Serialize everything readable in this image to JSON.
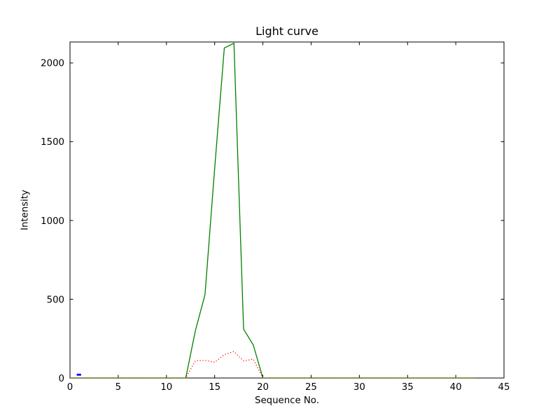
{
  "chart_data": {
    "type": "line",
    "title": "Light curve",
    "xlabel": "Sequence No.",
    "ylabel": "Intensity",
    "xlim": [
      0,
      45
    ],
    "ylim": [
      0,
      2133
    ],
    "xticks": [
      0,
      5,
      10,
      15,
      20,
      25,
      30,
      35,
      40,
      45
    ],
    "yticks": [
      0,
      500,
      1000,
      1500,
      2000
    ],
    "grid": false,
    "legend": "none",
    "x": [
      0,
      1,
      2,
      3,
      4,
      5,
      6,
      7,
      8,
      9,
      10,
      11,
      12,
      13,
      14,
      15,
      16,
      17,
      18,
      19,
      20,
      21,
      22,
      23,
      24,
      25,
      26,
      27,
      28,
      29,
      30,
      31,
      32,
      33,
      34,
      35,
      36,
      37,
      38,
      39,
      40,
      41,
      42
    ],
    "series": [
      {
        "name": "green-solid",
        "color": "#008000",
        "line_style": "solid",
        "values": [
          0,
          0,
          0,
          0,
          0,
          0,
          0,
          0,
          0,
          0,
          0,
          0,
          0,
          300,
          530,
          1330,
          2095,
          2125,
          310,
          210,
          0,
          0,
          0,
          0,
          0,
          0,
          0,
          0,
          0,
          0,
          0,
          0,
          0,
          0,
          0,
          0,
          0,
          0,
          0,
          0,
          0,
          0,
          0
        ]
      },
      {
        "name": "red-dotted",
        "color": "#ff0000",
        "line_style": "dotted",
        "values": [
          0,
          0,
          0,
          0,
          0,
          0,
          0,
          0,
          0,
          0,
          0,
          0,
          0,
          110,
          112,
          100,
          148,
          168,
          108,
          120,
          0,
          0,
          0,
          0,
          0,
          0,
          0,
          0,
          0,
          0,
          0,
          0,
          0,
          0,
          0,
          0,
          0,
          0,
          0,
          0,
          0,
          0,
          0
        ]
      }
    ],
    "extra_marks": [
      {
        "name": "blue-dash",
        "color": "#0000ff",
        "points": [
          [
            0.7,
            21
          ],
          [
            1.15,
            21
          ]
        ]
      }
    ]
  },
  "colors": {
    "background": "#ffffff",
    "axes": "#000000",
    "text": "#000000"
  }
}
